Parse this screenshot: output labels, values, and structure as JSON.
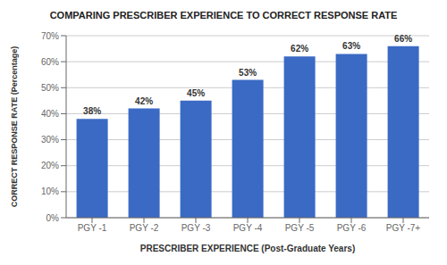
{
  "chart_data": {
    "type": "bar",
    "title": "COMPARING PRESCRIBER EXPERIENCE TO CORRECT RESPONSE RATE",
    "xlabel": "PRESCRIBER EXPERIENCE (Post-Graduate Years)",
    "ylabel": "CORRECT RESPONSE RATE (Percentage)",
    "categories": [
      "PGY -1",
      "PGY -2",
      "PGY -3",
      "PGY -4",
      "PGY -5",
      "PGY -6",
      "PGY -7+"
    ],
    "values": [
      38,
      42,
      45,
      53,
      62,
      63,
      66
    ],
    "value_labels": [
      "38%",
      "42%",
      "45%",
      "53%",
      "62%",
      "63%",
      "66%"
    ],
    "data_labels": true,
    "color": "#3B6AC4",
    "ylim": [
      0,
      70
    ],
    "yticks": [
      {
        "value": 0,
        "label": "0%"
      },
      {
        "value": 10,
        "label": "10%"
      },
      {
        "value": 20,
        "label": "20%"
      },
      {
        "value": 30,
        "label": "30%"
      },
      {
        "value": 40,
        "label": "40%"
      },
      {
        "value": 50,
        "label": "50%"
      },
      {
        "value": 60,
        "label": "60%"
      },
      {
        "value": 70,
        "label": "70%"
      }
    ],
    "grid": true
  }
}
